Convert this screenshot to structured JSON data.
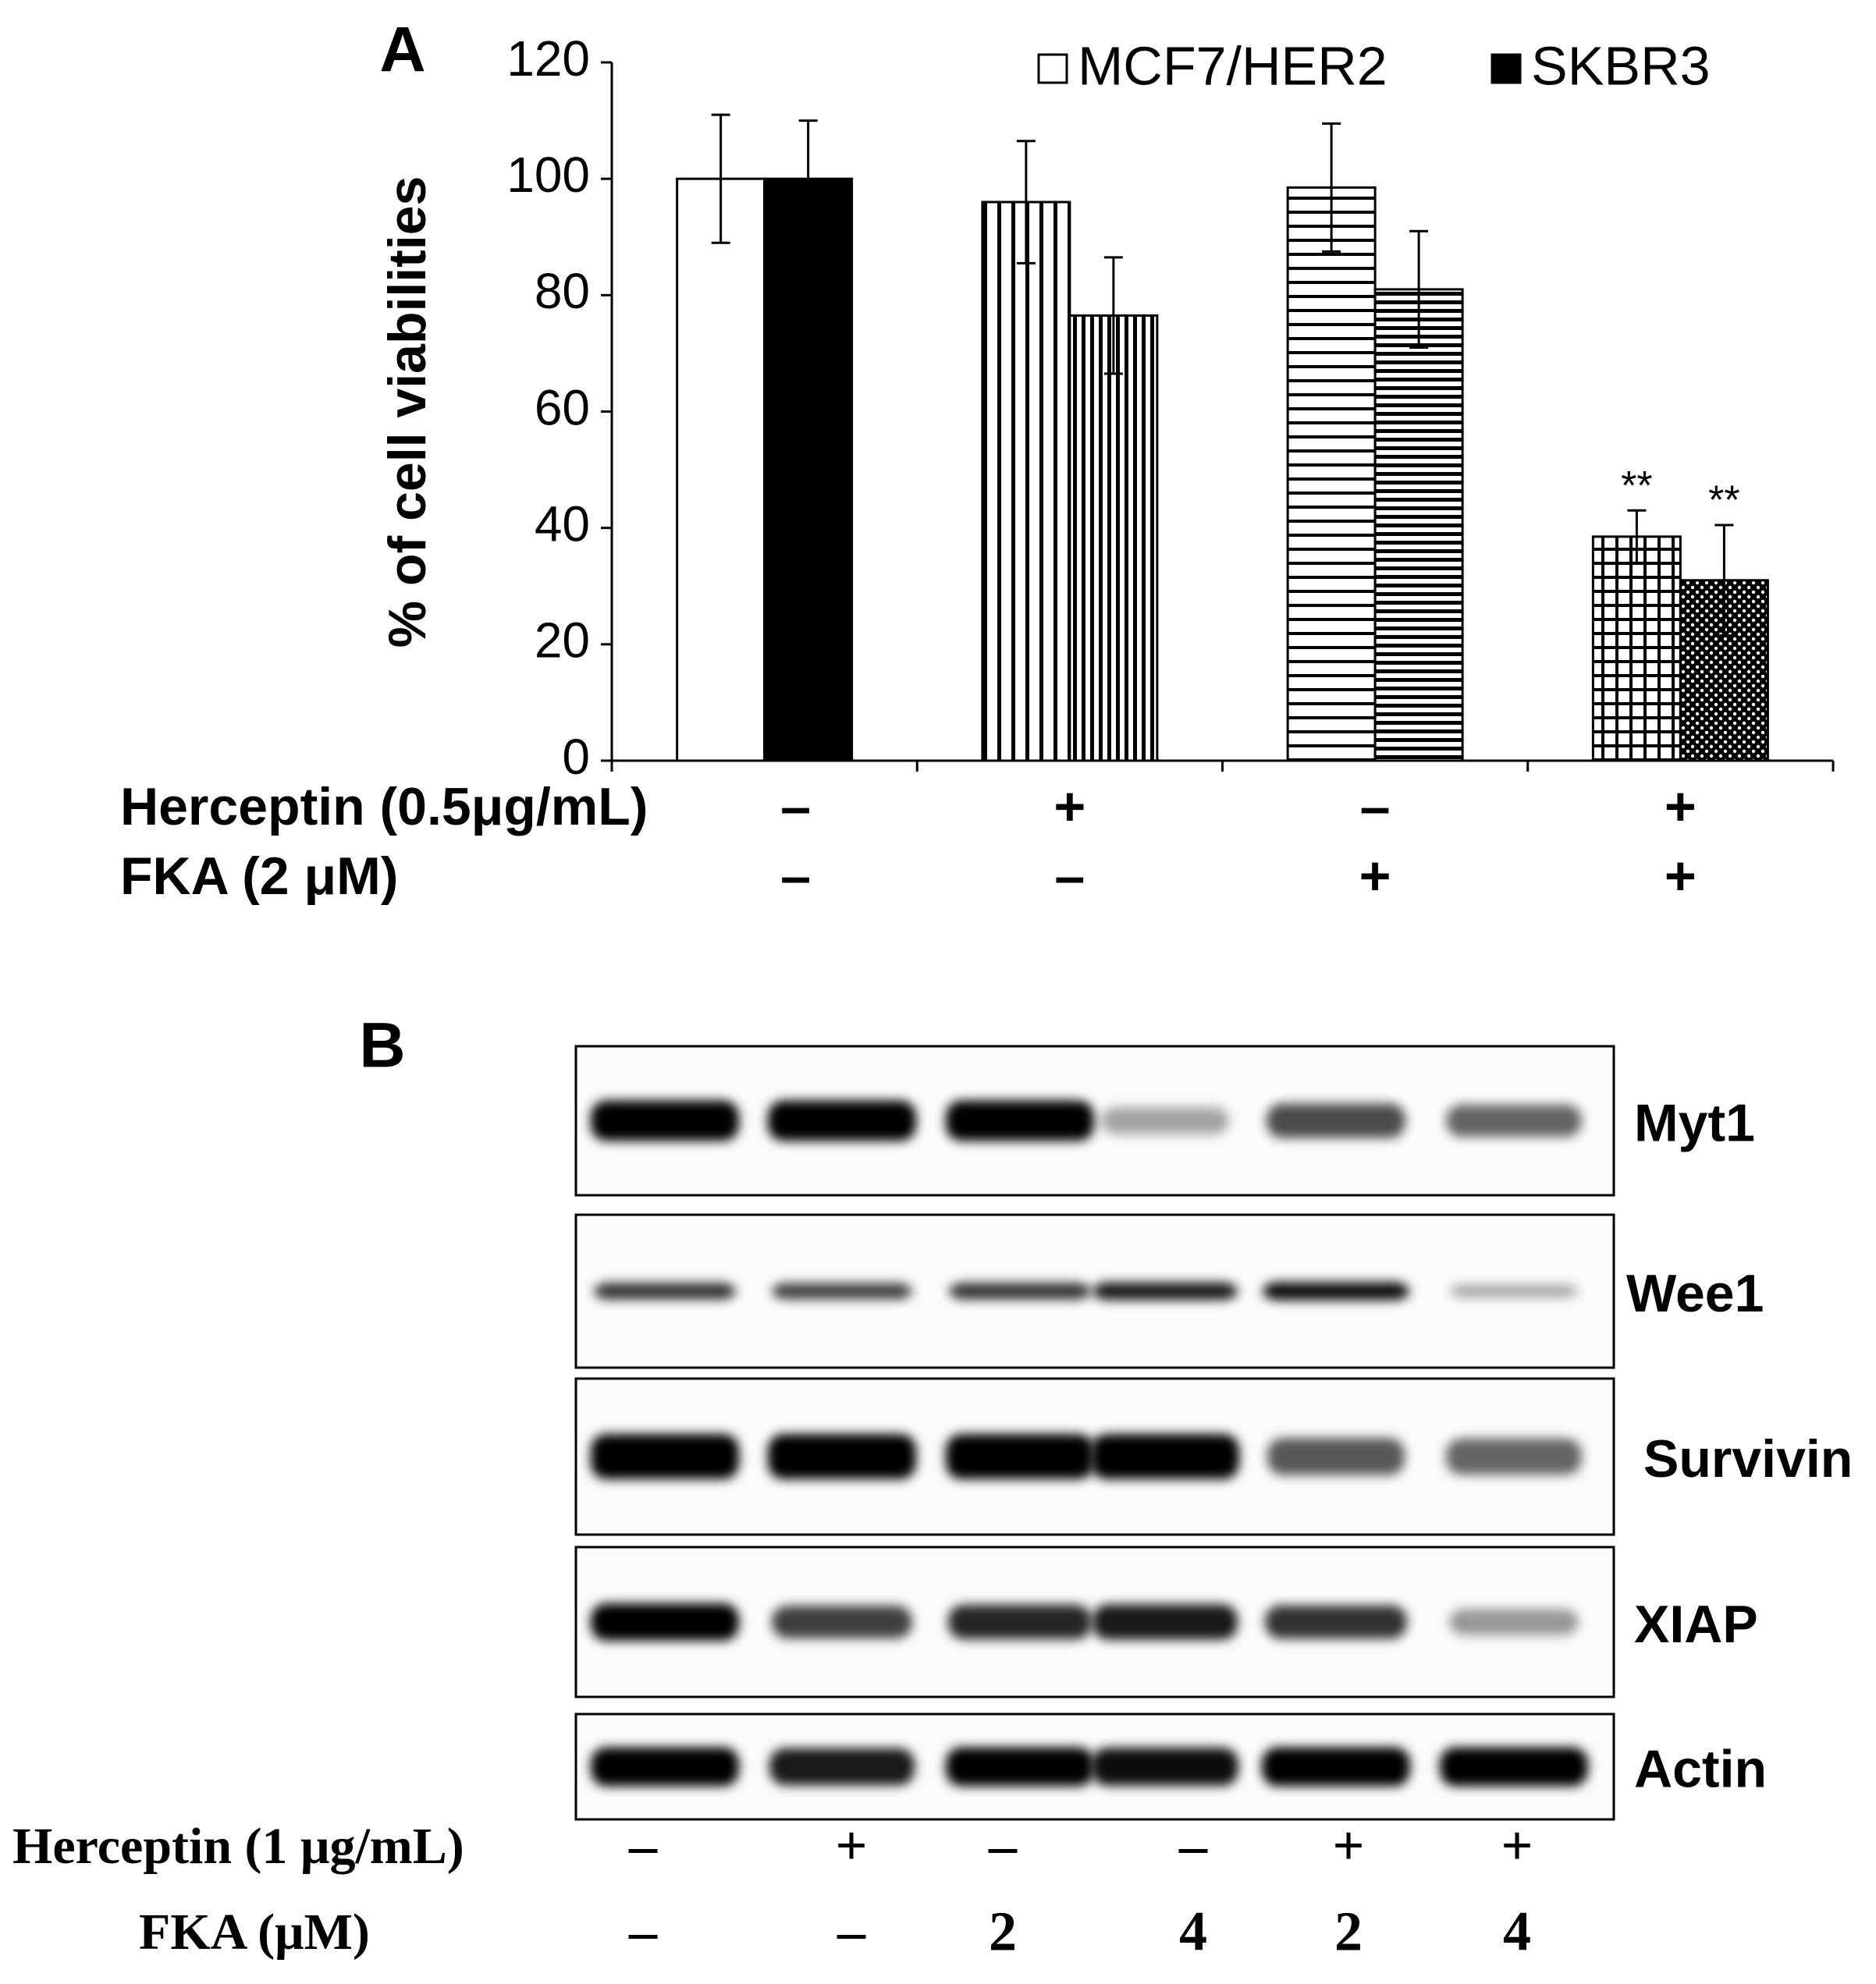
{
  "chart_data": {
    "type": "bar",
    "panel": "A",
    "y_label": "% of cell viabilities",
    "categories": [
      null,
      null,
      null,
      null
    ],
    "ylim": [
      0,
      120
    ],
    "yticks": [
      0,
      20,
      40,
      60,
      80,
      100,
      120
    ],
    "series": [
      {
        "name": "MCF7/HER2",
        "color": "#ffffff",
        "values": [
          100,
          96,
          98.5,
          38.5
        ],
        "errors": [
          11,
          10.5,
          11,
          4.5
        ],
        "patterns": [
          "solid",
          "vertical-stripes",
          "horizontal-stripes",
          "grid"
        ],
        "significance": [
          null,
          null,
          null,
          "**"
        ]
      },
      {
        "name": "SKBR3",
        "color": "#000000",
        "values": [
          100,
          76.5,
          81,
          31
        ],
        "errors": [
          10,
          10,
          10,
          9.5
        ],
        "patterns": [
          "solid",
          "vertical-stripes",
          "horizontal-stripes",
          "dots"
        ],
        "significance": [
          null,
          null,
          null,
          "**"
        ]
      }
    ],
    "treatments": [
      {
        "label": "Herceptin (0.5μg/mL)",
        "values": [
          "–",
          "+",
          "–",
          "+"
        ]
      },
      {
        "label": "FKA (2 μM)",
        "values": [
          "–",
          "–",
          "+",
          "+"
        ]
      }
    ]
  },
  "blot": {
    "panel": "B",
    "rows": [
      {
        "label": "Myt1",
        "intensity": [
          1,
          1,
          1,
          0.35,
          0.7,
          0.6
        ]
      },
      {
        "label": "Wee1",
        "intensity": [
          0.8,
          0.75,
          0.8,
          0.9,
          0.95,
          0.35
        ]
      },
      {
        "label": "Survivin",
        "intensity": [
          1,
          1,
          1,
          1,
          0.65,
          0.6
        ]
      },
      {
        "label": "XIAP",
        "intensity": [
          1,
          0.75,
          0.85,
          0.9,
          0.8,
          0.4
        ]
      },
      {
        "label": "Actin",
        "intensity": [
          1,
          0.9,
          1,
          0.95,
          1,
          1
        ]
      }
    ],
    "treatments": [
      {
        "label": "Herceptin (1 μg/mL)",
        "values": [
          "–",
          "+",
          "–",
          "–",
          "+",
          "+"
        ]
      },
      {
        "label": "FKA (μM)",
        "values": [
          "–",
          "–",
          "2",
          "4",
          "2",
          "4"
        ]
      }
    ]
  }
}
